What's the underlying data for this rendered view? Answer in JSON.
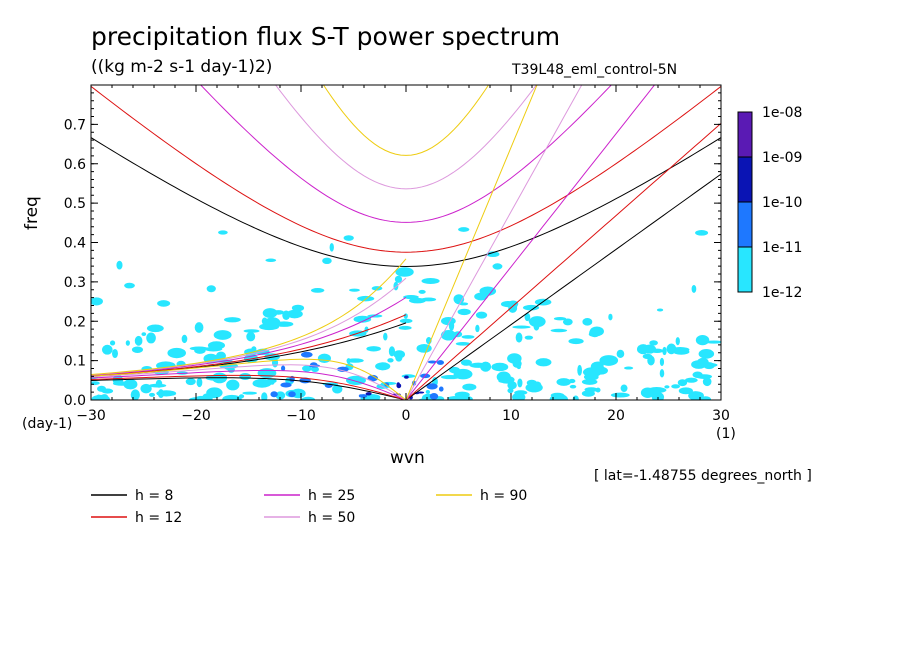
{
  "title": "precipitation flux S-T power spectrum",
  "subtitle": "((kg m-2 s-1 day-1)2)",
  "run_name": "T39L48_eml_control-5N",
  "x_unit_left": "(day-1)",
  "x_unit_right": "(1)",
  "lat_note": "[ lat=-1.48755 degrees_north ]",
  "chart_data": {
    "type": "heatmap",
    "title": "precipitation flux S-T power spectrum",
    "subtitle": "((kg m-2 s-1 day-1)2)",
    "xlabel": "wvn",
    "ylabel": "freq",
    "xlim": [
      -30,
      30
    ],
    "ylim": [
      0,
      0.8
    ],
    "x_ticks": [
      -30,
      -20,
      -10,
      0,
      10,
      20,
      30
    ],
    "y_ticks": [
      0.0,
      0.1,
      0.2,
      0.3,
      0.4,
      0.5,
      0.6,
      0.7
    ],
    "colorbar": {
      "labels": [
        "1e-08",
        "1e-09",
        "1e-10",
        "1e-11",
        "1e-12"
      ],
      "colors": [
        "#5a1ab4",
        "#0a14b4",
        "#1e78ff",
        "#28e6ff"
      ]
    },
    "dispersion_curves": [
      {
        "name": "h = 8",
        "color": "#000000"
      },
      {
        "name": "h = 12",
        "color": "#dd1111"
      },
      {
        "name": "h = 25",
        "color": "#cc22cc"
      },
      {
        "name": "h = 50",
        "color": "#dd99dd"
      },
      {
        "name": "h = 90",
        "color": "#eecc11"
      }
    ],
    "grid": false
  }
}
